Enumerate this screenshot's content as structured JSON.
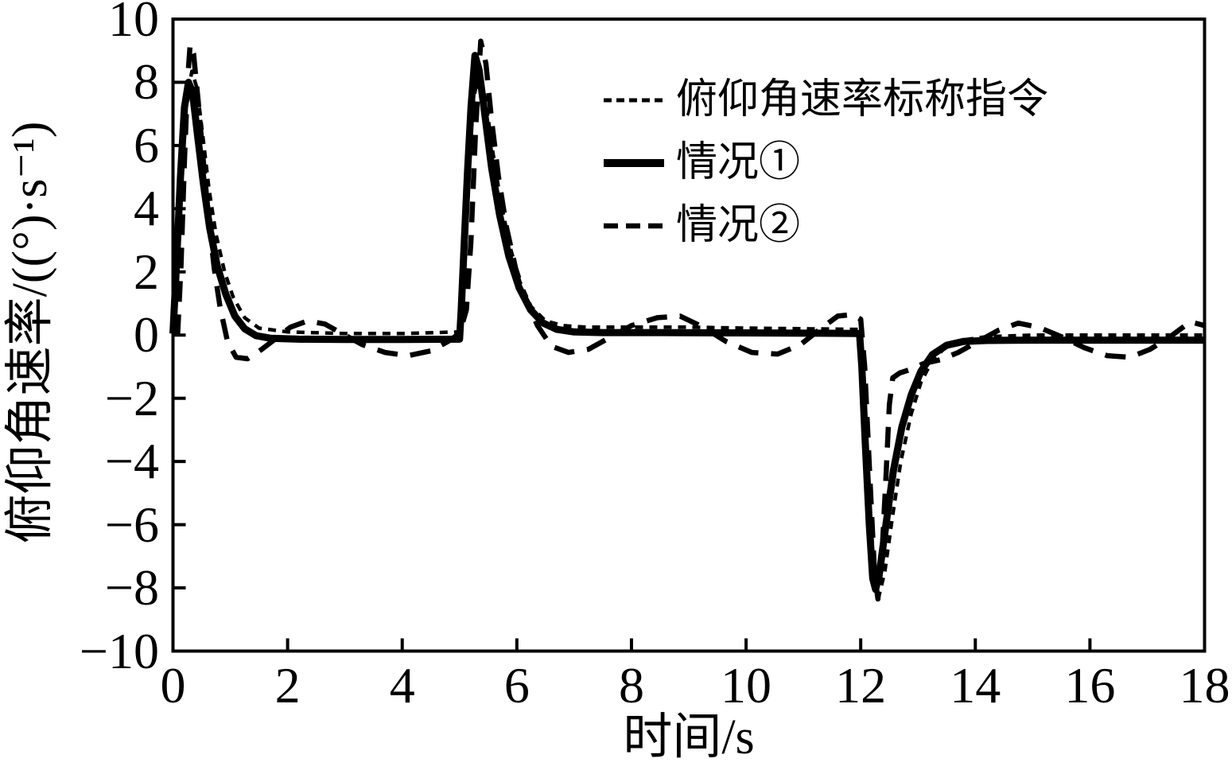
{
  "figure": {
    "background": "#ffffff",
    "ink": "#000000"
  },
  "legend": {
    "items": [
      {
        "label": "俯仰角速率标称指令",
        "style": "dotted"
      },
      {
        "label": "情况①",
        "style": "solid"
      },
      {
        "label": "情况②",
        "style": "dashed"
      }
    ]
  },
  "chart_data": {
    "type": "line",
    "title": "",
    "xlabel": "时间/s",
    "ylabel": "俯仰角速率/((°)·s⁻¹)",
    "xlim": [
      0,
      18
    ],
    "ylim": [
      -10,
      10
    ],
    "xticks": [
      0,
      2,
      4,
      6,
      8,
      10,
      12,
      14,
      16,
      18
    ],
    "yticks": [
      -10,
      -8,
      -6,
      -4,
      -2,
      0,
      2,
      4,
      6,
      8,
      10
    ],
    "xtick_labels": [
      "0",
      "2",
      "4",
      "6",
      "8",
      "10",
      "12",
      "14",
      "16",
      "18"
    ],
    "ytick_labels": [
      "−10",
      "−8",
      "−6",
      "−4",
      "−2",
      "0",
      "2",
      "4",
      "6",
      "8",
      "10"
    ],
    "grid": false,
    "legend_position": "upper-right-inside",
    "series": [
      {
        "name": "情况②",
        "style": "dashed",
        "color": "#000000",
        "stroke_width": 6.5,
        "dash": "26 16",
        "points": [
          [
            0.08,
            0.0
          ],
          [
            0.14,
            2.2
          ],
          [
            0.2,
            5.5
          ],
          [
            0.26,
            8.2
          ],
          [
            0.3,
            9.2
          ],
          [
            0.36,
            8.9
          ],
          [
            0.44,
            7.4
          ],
          [
            0.53,
            5.5
          ],
          [
            0.62,
            3.7
          ],
          [
            0.72,
            2.1
          ],
          [
            0.82,
            0.9
          ],
          [
            0.95,
            -0.2
          ],
          [
            1.1,
            -0.7
          ],
          [
            1.3,
            -0.75
          ],
          [
            1.55,
            -0.45
          ],
          [
            1.8,
            -0.1
          ],
          [
            2.05,
            0.25
          ],
          [
            2.35,
            0.45
          ],
          [
            2.65,
            0.35
          ],
          [
            2.95,
            0.05
          ],
          [
            3.3,
            -0.3
          ],
          [
            3.7,
            -0.55
          ],
          [
            4.1,
            -0.65
          ],
          [
            4.5,
            -0.5
          ],
          [
            4.8,
            -0.2
          ],
          [
            5.0,
            0.05
          ],
          [
            5.12,
            0.8
          ],
          [
            5.2,
            3.0
          ],
          [
            5.28,
            6.5
          ],
          [
            5.37,
            9.3
          ],
          [
            5.46,
            8.6
          ],
          [
            5.56,
            6.8
          ],
          [
            5.68,
            5.0
          ],
          [
            5.82,
            3.4
          ],
          [
            5.98,
            2.1
          ],
          [
            6.16,
            1.1
          ],
          [
            6.36,
            0.3
          ],
          [
            6.6,
            -0.35
          ],
          [
            6.9,
            -0.55
          ],
          [
            7.25,
            -0.45
          ],
          [
            7.6,
            -0.1
          ],
          [
            8.0,
            0.3
          ],
          [
            8.45,
            0.55
          ],
          [
            8.85,
            0.6
          ],
          [
            9.25,
            0.25
          ],
          [
            9.65,
            -0.2
          ],
          [
            10.1,
            -0.55
          ],
          [
            10.55,
            -0.6
          ],
          [
            10.95,
            -0.3
          ],
          [
            11.3,
            0.2
          ],
          [
            11.6,
            0.6
          ],
          [
            11.85,
            0.65
          ],
          [
            12.0,
            0.5
          ],
          [
            12.07,
            -1.0
          ],
          [
            12.16,
            -4.5
          ],
          [
            12.24,
            -7.5
          ],
          [
            12.3,
            -8.35
          ],
          [
            12.37,
            -7.0
          ],
          [
            12.44,
            -4.5
          ],
          [
            12.5,
            -2.2
          ],
          [
            12.56,
            -1.35
          ],
          [
            12.68,
            -1.2
          ],
          [
            12.85,
            -1.1
          ],
          [
            13.1,
            -0.9
          ],
          [
            13.4,
            -0.78
          ],
          [
            13.7,
            -0.55
          ],
          [
            14.0,
            -0.25
          ],
          [
            14.4,
            0.15
          ],
          [
            14.75,
            0.38
          ],
          [
            15.1,
            0.25
          ],
          [
            15.5,
            -0.05
          ],
          [
            15.9,
            -0.4
          ],
          [
            16.3,
            -0.65
          ],
          [
            16.7,
            -0.7
          ],
          [
            17.05,
            -0.45
          ],
          [
            17.4,
            -0.05
          ],
          [
            17.75,
            0.42
          ],
          [
            18,
            0.3
          ]
        ]
      },
      {
        "name": "情况①",
        "style": "solid",
        "color": "#000000",
        "stroke_width": 9,
        "dash": "",
        "points": [
          [
            0,
            0.05
          ],
          [
            0.06,
            2.2
          ],
          [
            0.13,
            5.0
          ],
          [
            0.2,
            7.2
          ],
          [
            0.27,
            8.0
          ],
          [
            0.34,
            7.7
          ],
          [
            0.43,
            6.3
          ],
          [
            0.53,
            4.8
          ],
          [
            0.64,
            3.4
          ],
          [
            0.77,
            2.2
          ],
          [
            0.92,
            1.3
          ],
          [
            1.08,
            0.6
          ],
          [
            1.25,
            0.2
          ],
          [
            1.45,
            -0.02
          ],
          [
            1.7,
            -0.1
          ],
          [
            2.2,
            -0.13
          ],
          [
            3,
            -0.14
          ],
          [
            4,
            -0.14
          ],
          [
            5.0,
            -0.13
          ],
          [
            5.03,
            0.8
          ],
          [
            5.08,
            2.8
          ],
          [
            5.14,
            5.2
          ],
          [
            5.2,
            7.2
          ],
          [
            5.27,
            8.85
          ],
          [
            5.34,
            8.4
          ],
          [
            5.44,
            7.0
          ],
          [
            5.56,
            5.3
          ],
          [
            5.7,
            3.8
          ],
          [
            5.86,
            2.5
          ],
          [
            6.04,
            1.5
          ],
          [
            6.24,
            0.8
          ],
          [
            6.46,
            0.38
          ],
          [
            6.7,
            0.18
          ],
          [
            7,
            0.1
          ],
          [
            7.5,
            0.08
          ],
          [
            8.5,
            0.08
          ],
          [
            10,
            0.07
          ],
          [
            11.3,
            0.06
          ],
          [
            11.98,
            0.05
          ],
          [
            12.02,
            -1.0
          ],
          [
            12.08,
            -3.4
          ],
          [
            12.15,
            -6.0
          ],
          [
            12.21,
            -7.7
          ],
          [
            12.26,
            -8.05
          ],
          [
            12.33,
            -7.5
          ],
          [
            12.44,
            -6.0
          ],
          [
            12.57,
            -4.3
          ],
          [
            12.72,
            -2.9
          ],
          [
            12.88,
            -1.9
          ],
          [
            13.05,
            -1.15
          ],
          [
            13.25,
            -0.62
          ],
          [
            13.5,
            -0.32
          ],
          [
            13.8,
            -0.2
          ],
          [
            14.2,
            -0.17
          ],
          [
            15,
            -0.16
          ],
          [
            16,
            -0.16
          ],
          [
            17,
            -0.16
          ],
          [
            18,
            -0.16
          ]
        ]
      },
      {
        "name": "俯仰角速率标称指令",
        "style": "dotted",
        "color": "#000000",
        "stroke_width": 4.5,
        "dash": "10 8",
        "points": [
          [
            0,
            0.05
          ],
          [
            0.05,
            1.8
          ],
          [
            0.12,
            4.6
          ],
          [
            0.22,
            7.3
          ],
          [
            0.33,
            8.35
          ],
          [
            0.42,
            7.8
          ],
          [
            0.52,
            6.3
          ],
          [
            0.63,
            4.6
          ],
          [
            0.75,
            3.2
          ],
          [
            0.9,
            2.0
          ],
          [
            1.05,
            1.2
          ],
          [
            1.25,
            0.55
          ],
          [
            1.5,
            0.22
          ],
          [
            2,
            0.1
          ],
          [
            3,
            0.05
          ],
          [
            4,
            0.05
          ],
          [
            4.98,
            0.1
          ],
          [
            5.05,
            1.8
          ],
          [
            5.12,
            4.5
          ],
          [
            5.22,
            7.2
          ],
          [
            5.33,
            8.3
          ],
          [
            5.45,
            7.5
          ],
          [
            5.58,
            5.8
          ],
          [
            5.72,
            4.2
          ],
          [
            5.88,
            2.8
          ],
          [
            6.05,
            1.7
          ],
          [
            6.25,
            0.9
          ],
          [
            6.5,
            0.45
          ],
          [
            6.8,
            0.3
          ],
          [
            7.2,
            0.25
          ],
          [
            8,
            0.25
          ],
          [
            9,
            0.25
          ],
          [
            10,
            0.22
          ],
          [
            11,
            0.2
          ],
          [
            11.95,
            0.18
          ],
          [
            12.02,
            -0.5
          ],
          [
            12.08,
            -2.5
          ],
          [
            12.16,
            -5.5
          ],
          [
            12.24,
            -7.6
          ],
          [
            12.32,
            -8.25
          ],
          [
            12.42,
            -7.5
          ],
          [
            12.55,
            -5.8
          ],
          [
            12.7,
            -4.0
          ],
          [
            12.88,
            -2.5
          ],
          [
            13.05,
            -1.5
          ],
          [
            13.25,
            -0.8
          ],
          [
            13.5,
            -0.35
          ],
          [
            13.8,
            -0.15
          ],
          [
            14.2,
            -0.05
          ],
          [
            15,
            0.0
          ],
          [
            16,
            0.0
          ],
          [
            17,
            0.0
          ],
          [
            18,
            0.0
          ]
        ]
      }
    ]
  }
}
